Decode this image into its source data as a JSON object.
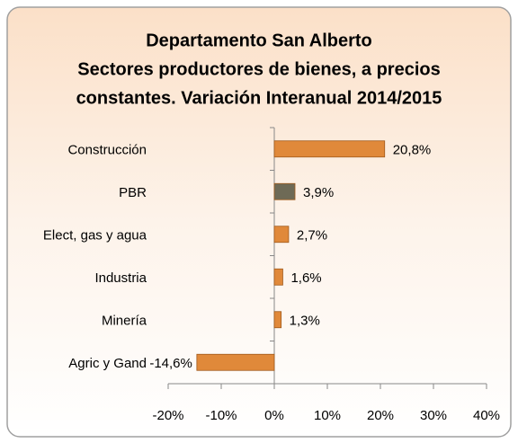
{
  "chart_data": {
    "type": "hbar",
    "title": [
      "Departamento San Alberto",
      "Sectores productores de bienes, a precios",
      "constantes. Variación Interanual 2014/2015"
    ],
    "categories": [
      "Construcción",
      "PBR",
      "Elect, gas y agua",
      "Industria",
      "Minería",
      "Agric y Gand"
    ],
    "values": [
      20.8,
      3.9,
      2.7,
      1.6,
      1.3,
      -14.6
    ],
    "value_labels": [
      "20,8%",
      "3,9%",
      "2,7%",
      "1,6%",
      "1,3%",
      "-14,6%"
    ],
    "colors": [
      "#e0893a",
      "#6e6a56",
      "#e0893a",
      "#e0893a",
      "#e0893a",
      "#e0893a"
    ],
    "xlim": [
      -20,
      40
    ],
    "xticks": [
      {
        "value": -20,
        "label": "-20%"
      },
      {
        "value": -10,
        "label": "-10%"
      },
      {
        "value": 0,
        "label": "0%"
      },
      {
        "value": 10,
        "label": "10%"
      },
      {
        "value": 20,
        "label": "20%"
      },
      {
        "value": 30,
        "label": "30%"
      },
      {
        "value": 40,
        "label": "40%"
      }
    ]
  }
}
